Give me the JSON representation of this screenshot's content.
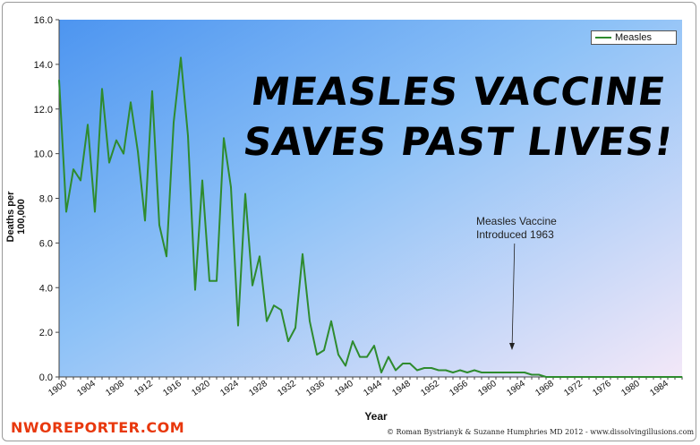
{
  "headline": {
    "line1": "MEASLES VACCINE",
    "line2": "SAVES PAST LIVES!"
  },
  "annotation": {
    "line1": "Measles Vaccine",
    "line2": "Introduced 1963"
  },
  "brand": "NWOREPORTER.COM",
  "copyright": "© Roman Bystrianyk & Suzanne Humphries MD 2012 - www.dissolvingillusions.com",
  "colors": {
    "series": "#2e8b2e",
    "brand": "#e8380d",
    "plot_left": "#5a9ff2",
    "plot_right": "#f0e6f8"
  },
  "chart_data": {
    "type": "line",
    "title": "",
    "xlabel": "Year",
    "ylabel": "Deaths per 100,000",
    "xlim": [
      1900,
      1987
    ],
    "ylim": [
      0,
      16
    ],
    "yticks": [
      "0.0",
      "2.0",
      "4.0",
      "6.0",
      "8.0",
      "10.0",
      "12.0",
      "14.0",
      "16.0"
    ],
    "xticks": [
      "1900",
      "1904",
      "1908",
      "1912",
      "1916",
      "1920",
      "1924",
      "1928",
      "1932",
      "1936",
      "1940",
      "1944",
      "1948",
      "1952",
      "1956",
      "1960",
      "1964",
      "1968",
      "1972",
      "1976",
      "1980",
      "1984"
    ],
    "grid": false,
    "legend_position": "top-right",
    "annotation_year": 1963,
    "series": [
      {
        "name": "Measles",
        "x": [
          1900,
          1901,
          1902,
          1903,
          1904,
          1905,
          1906,
          1907,
          1908,
          1909,
          1910,
          1911,
          1912,
          1913,
          1914,
          1915,
          1916,
          1917,
          1918,
          1919,
          1920,
          1921,
          1922,
          1923,
          1924,
          1925,
          1926,
          1927,
          1928,
          1929,
          1930,
          1931,
          1932,
          1933,
          1934,
          1935,
          1936,
          1937,
          1938,
          1939,
          1940,
          1941,
          1942,
          1943,
          1944,
          1945,
          1946,
          1947,
          1948,
          1949,
          1950,
          1951,
          1952,
          1953,
          1954,
          1955,
          1956,
          1957,
          1958,
          1959,
          1960,
          1961,
          1962,
          1963,
          1964,
          1965,
          1966,
          1967,
          1968,
          1969,
          1970,
          1971,
          1972,
          1973,
          1974,
          1975,
          1976,
          1977,
          1978,
          1979,
          1980,
          1981,
          1982,
          1983,
          1984,
          1985,
          1986,
          1987
        ],
        "values": [
          13.3,
          7.4,
          9.3,
          8.8,
          11.3,
          7.4,
          12.9,
          9.6,
          10.6,
          10.0,
          12.3,
          10.1,
          7.0,
          12.8,
          6.8,
          5.4,
          11.4,
          14.3,
          10.8,
          3.9,
          8.8,
          4.3,
          4.3,
          10.7,
          8.5,
          2.3,
          8.2,
          4.1,
          5.4,
          2.5,
          3.2,
          3.0,
          1.6,
          2.2,
          5.5,
          2.5,
          1.0,
          1.2,
          2.5,
          1.0,
          0.5,
          1.6,
          0.9,
          0.9,
          1.4,
          0.2,
          0.9,
          0.3,
          0.6,
          0.6,
          0.3,
          0.4,
          0.4,
          0.3,
          0.3,
          0.2,
          0.3,
          0.2,
          0.3,
          0.2,
          0.2,
          0.2,
          0.2,
          0.2,
          0.2,
          0.2,
          0.1,
          0.1,
          0.0,
          0.0,
          0.0,
          0.0,
          0.0,
          0.0,
          0.0,
          0.0,
          0.0,
          0.0,
          0.0,
          0.0,
          0.0,
          0.0,
          0.0,
          0.0,
          0.0,
          0.0,
          0.0,
          0.0
        ]
      }
    ]
  }
}
